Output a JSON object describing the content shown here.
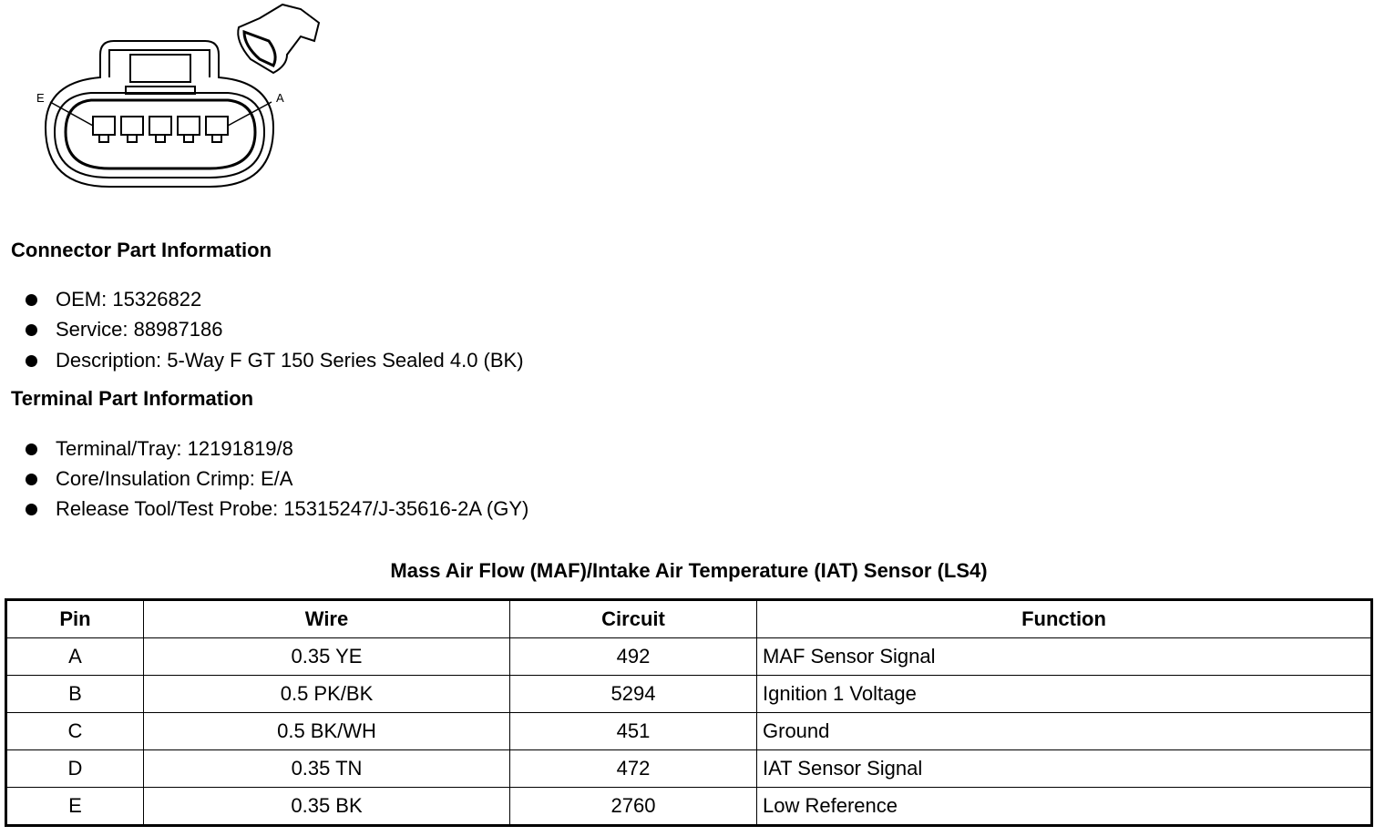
{
  "diagram": {
    "pin_labels": [
      "E",
      "A"
    ]
  },
  "connector_section": {
    "heading": "Connector Part Information",
    "items": [
      "OEM: 15326822",
      "Service: 88987186",
      "Description: 5-Way F GT 150 Series Sealed 4.0 (BK)"
    ]
  },
  "terminal_section": {
    "heading": "Terminal Part Information",
    "items": [
      "Terminal/Tray: 12191819/8",
      "Core/Insulation Crimp: E/A",
      "Release Tool/Test Probe: 15315247/J-35616-2A (GY)"
    ]
  },
  "table": {
    "title": "Mass Air Flow (MAF)/Intake Air Temperature (IAT) Sensor (LS4)",
    "headers": [
      "Pin",
      "Wire",
      "Circuit",
      "Function"
    ],
    "rows": [
      [
        "A",
        "0.35 YE",
        "492",
        "MAF Sensor Signal"
      ],
      [
        "B",
        "0.5 PK/BK",
        "5294",
        "Ignition 1 Voltage"
      ],
      [
        "C",
        "0.5 BK/WH",
        "451",
        "Ground"
      ],
      [
        "D",
        "0.35 TN",
        "472",
        "IAT Sensor Signal"
      ],
      [
        "E",
        "0.35 BK",
        "2760",
        "Low Reference"
      ]
    ]
  }
}
